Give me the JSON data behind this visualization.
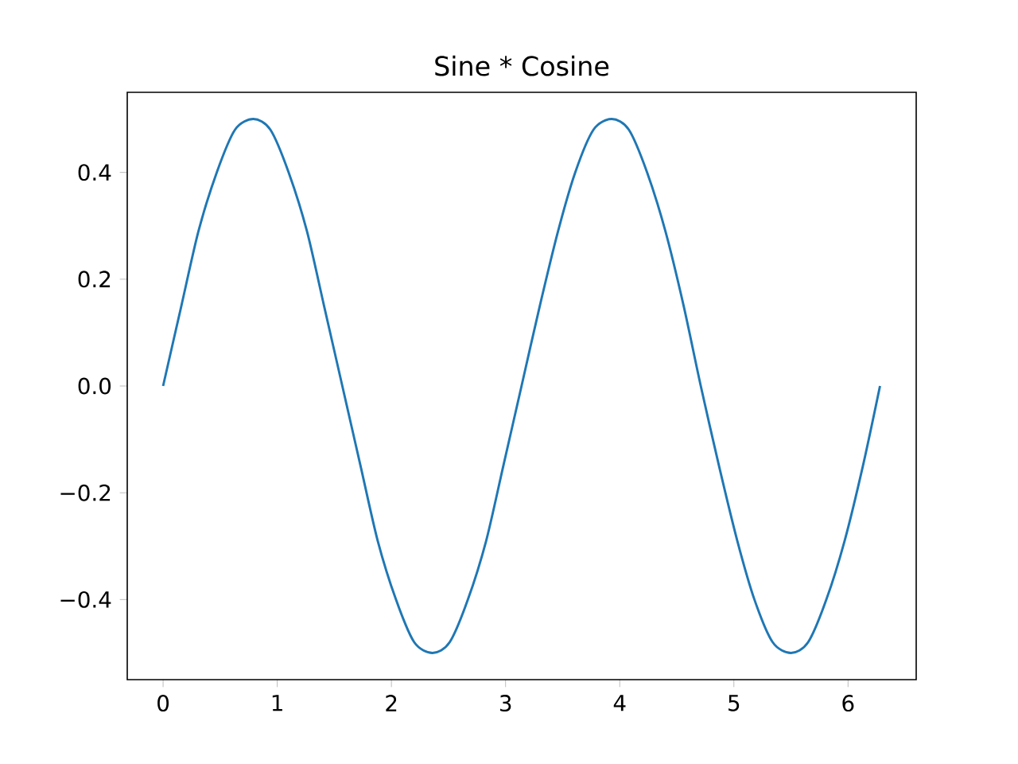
{
  "chart_data": {
    "type": "line",
    "title": "Sine * Cosine",
    "x": [
      0,
      0.16,
      0.31,
      0.47,
      0.63,
      0.79,
      0.94,
      1.1,
      1.26,
      1.41,
      1.57,
      1.73,
      1.88,
      2.04,
      2.2,
      2.36,
      2.51,
      2.67,
      2.83,
      2.98,
      3.14,
      3.3,
      3.46,
      3.61,
      3.77,
      3.93,
      4.08,
      4.24,
      4.4,
      4.56,
      4.71,
      4.87,
      5.03,
      5.18,
      5.34,
      5.5,
      5.65,
      5.81,
      5.97,
      6.13,
      6.28
    ],
    "series": [
      {
        "color": "#1f77b4",
        "values": [
          0,
          0.15,
          0.29,
          0.4,
          0.48,
          0.5,
          0.48,
          0.4,
          0.29,
          0.15,
          0,
          -0.15,
          -0.29,
          -0.4,
          -0.48,
          -0.5,
          -0.48,
          -0.4,
          -0.29,
          -0.15,
          0,
          0.15,
          0.29,
          0.4,
          0.48,
          0.5,
          0.48,
          0.4,
          0.29,
          0.15,
          0,
          -0.15,
          -0.29,
          -0.4,
          -0.48,
          -0.5,
          -0.48,
          -0.4,
          -0.29,
          -0.15,
          0
        ]
      }
    ],
    "xlim": [
      -0.314,
      6.597
    ],
    "ylim": [
      -0.55,
      0.55
    ],
    "xticks": [
      0,
      1,
      2,
      3,
      4,
      5,
      6
    ],
    "yticks": [
      {
        "value": -0.4,
        "label": "−0.4"
      },
      {
        "value": -0.2,
        "label": "−0.2"
      },
      {
        "value": 0,
        "label": "0.0"
      },
      {
        "value": 0.2,
        "label": "0.2"
      },
      {
        "value": 0.4,
        "label": "0.4"
      }
    ],
    "grid": false
  }
}
